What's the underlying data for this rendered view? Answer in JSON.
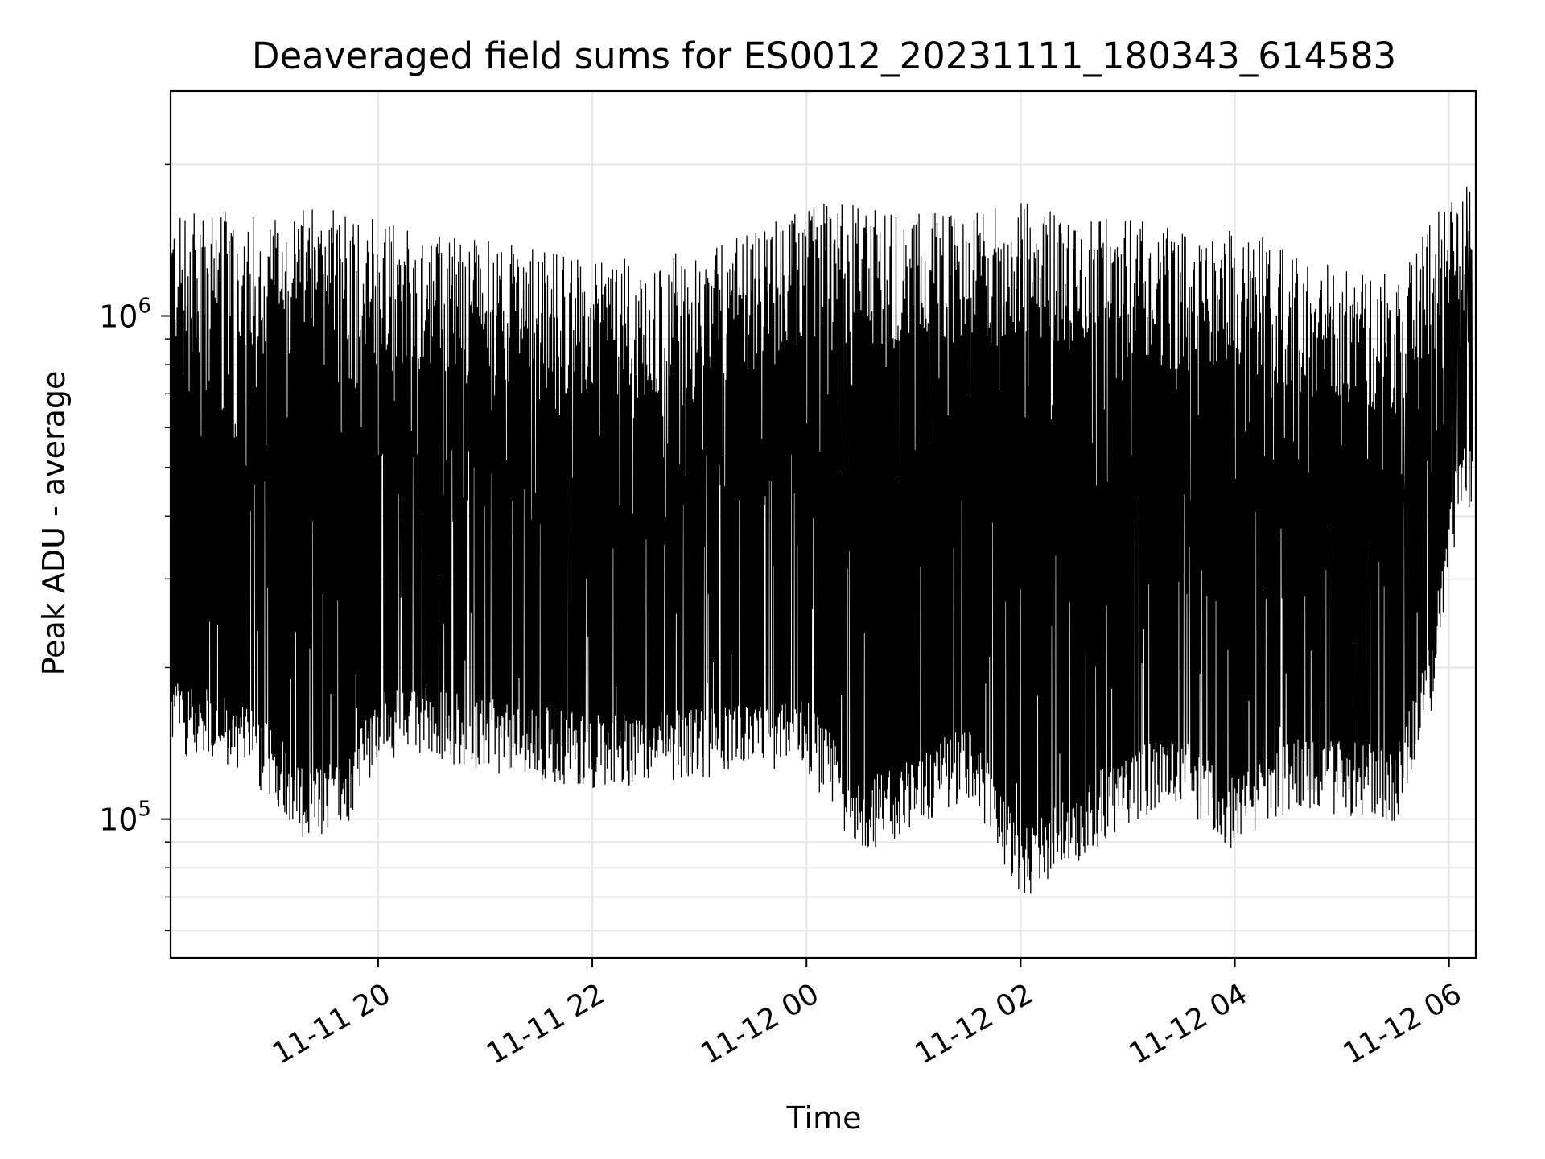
{
  "chart_data": {
    "type": "line",
    "title": "Deaveraged field sums for ES0012_20231111_180343_614583",
    "xlabel": "Time",
    "ylabel": "Peak ADU - average",
    "y_scale": "log",
    "ylim": [
      53000,
      2800000
    ],
    "xlim": [
      "2023-11-11 18:03:43",
      "2023-11-12 06:15:00"
    ],
    "grid": true,
    "line_color": "#000000",
    "x_ticks": [
      {
        "value": "2023-11-11 20:00",
        "label": "11-11 20"
      },
      {
        "value": "2023-11-11 22:00",
        "label": "11-11 22"
      },
      {
        "value": "2023-11-12 00:00",
        "label": "11-12 00"
      },
      {
        "value": "2023-11-12 02:00",
        "label": "11-12 02"
      },
      {
        "value": "2023-11-12 04:00",
        "label": "11-12 04"
      },
      {
        "value": "2023-11-12 06:00",
        "label": "11-12 06"
      }
    ],
    "y_ticks": [
      {
        "value": 100000,
        "base": "10",
        "exp": "5"
      },
      {
        "value": 1000000,
        "base": "10",
        "exp": "6"
      }
    ],
    "envelope": {
      "description_note": "",
      "time": [
        "2023-11-11 18:04",
        "2023-11-11 18:30",
        "2023-11-11 19:00",
        "2023-11-11 19:20",
        "2023-11-11 19:40",
        "2023-11-11 20:00",
        "2023-11-11 20:30",
        "2023-11-11 21:00",
        "2023-11-11 21:30",
        "2023-11-11 22:00",
        "2023-11-11 22:30",
        "2023-11-11 23:00",
        "2023-11-11 23:30",
        "2023-11-12 00:00",
        "2023-11-12 00:30",
        "2023-11-12 01:00",
        "2023-11-12 01:30",
        "2023-11-12 02:00",
        "2023-11-12 02:30",
        "2023-11-12 03:00",
        "2023-11-12 03:30",
        "2023-11-12 04:00",
        "2023-11-12 04:30",
        "2023-11-12 05:00",
        "2023-11-12 05:30",
        "2023-11-12 05:50",
        "2023-11-12 06:05",
        "2023-11-12 06:13"
      ],
      "upper": [
        1500000,
        1550000,
        1500000,
        1550000,
        1600000,
        1500000,
        1400000,
        1350000,
        1300000,
        1250000,
        1250000,
        1300000,
        1400000,
        1600000,
        1600000,
        1550000,
        1550000,
        1600000,
        1550000,
        1500000,
        1400000,
        1450000,
        1300000,
        1200000,
        1150000,
        1500000,
        1800000,
        1700000
      ],
      "lower": [
        160000,
        150000,
        130000,
        105000,
        110000,
        150000,
        155000,
        145000,
        140000,
        135000,
        135000,
        140000,
        140000,
        145000,
        100000,
        110000,
        130000,
        80000,
        95000,
        115000,
        125000,
        100000,
        120000,
        120000,
        115000,
        190000,
        450000,
        480000
      ]
    }
  }
}
